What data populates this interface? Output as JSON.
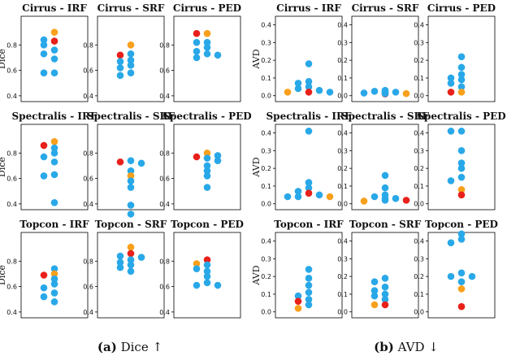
{
  "colors": {
    "blue": "#29a8e8",
    "orange": "#f8a01c",
    "red": "#e8201a",
    "frame": "#000000"
  },
  "captions": [
    {
      "label": "(a)",
      "text": "Dice ↑"
    },
    {
      "label": "(b)",
      "text": "AVD ↓"
    }
  ],
  "chart_data": [
    {
      "type": "scatter",
      "metric": "Dice",
      "title": "Cirrus - IRF",
      "ylabel": "Dice",
      "ylim": [
        0.38,
        1.0
      ],
      "yticks": [
        "0.4",
        "0.6",
        "0.8"
      ],
      "points": [
        {
          "v": 0.9,
          "c": "orange"
        },
        {
          "v": 0.83,
          "c": "red"
        },
        {
          "v": 0.84,
          "c": "blue"
        },
        {
          "v": 0.8,
          "c": "blue"
        },
        {
          "v": 0.76,
          "c": "blue"
        },
        {
          "v": 0.73,
          "c": "blue"
        },
        {
          "v": 0.69,
          "c": "blue"
        },
        {
          "v": 0.58,
          "c": "blue"
        },
        {
          "v": 0.58,
          "c": "blue"
        }
      ]
    },
    {
      "type": "scatter",
      "metric": "Dice",
      "title": "Cirrus - SRF",
      "ylabel": "",
      "ylim": [
        0.38,
        1.0
      ],
      "yticks": [
        "0.4",
        "0.6",
        "0.8"
      ],
      "points": [
        {
          "v": 0.8,
          "c": "orange"
        },
        {
          "v": 0.73,
          "c": "blue"
        },
        {
          "v": 0.72,
          "c": "red"
        },
        {
          "v": 0.68,
          "c": "blue"
        },
        {
          "v": 0.67,
          "c": "blue"
        },
        {
          "v": 0.64,
          "c": "blue"
        },
        {
          "v": 0.62,
          "c": "blue"
        },
        {
          "v": 0.58,
          "c": "blue"
        },
        {
          "v": 0.56,
          "c": "blue"
        }
      ]
    },
    {
      "type": "scatter",
      "metric": "Dice",
      "title": "Cirrus - PED",
      "ylabel": "",
      "ylim": [
        0.38,
        1.0
      ],
      "yticks": [
        "0.4",
        "0.6",
        "0.8"
      ],
      "points": [
        {
          "v": 0.89,
          "c": "orange"
        },
        {
          "v": 0.89,
          "c": "red"
        },
        {
          "v": 0.82,
          "c": "blue"
        },
        {
          "v": 0.82,
          "c": "blue"
        },
        {
          "v": 0.78,
          "c": "blue"
        },
        {
          "v": 0.75,
          "c": "blue"
        },
        {
          "v": 0.73,
          "c": "blue"
        },
        {
          "v": 0.72,
          "c": "blue"
        },
        {
          "v": 0.7,
          "c": "blue"
        }
      ]
    },
    {
      "type": "scatter",
      "metric": "AVD",
      "title": "Cirrus - IRF",
      "ylabel": "AVD",
      "ylim": [
        -0.015,
        0.43
      ],
      "yticks": [
        "0.0",
        "0.1",
        "0.2",
        "0.3",
        "0.4"
      ],
      "points": [
        {
          "v": 0.18,
          "c": "blue"
        },
        {
          "v": 0.08,
          "c": "blue"
        },
        {
          "v": 0.07,
          "c": "blue"
        },
        {
          "v": 0.05,
          "c": "blue"
        },
        {
          "v": 0.04,
          "c": "blue"
        },
        {
          "v": 0.03,
          "c": "blue"
        },
        {
          "v": 0.02,
          "c": "red"
        },
        {
          "v": 0.02,
          "c": "orange"
        },
        {
          "v": 0.02,
          "c": "blue"
        }
      ]
    },
    {
      "type": "scatter",
      "metric": "AVD",
      "title": "Cirrus - SRF",
      "ylabel": "",
      "ylim": [
        -0.015,
        0.43
      ],
      "yticks": [
        "0.0",
        "0.1",
        "0.2",
        "0.3",
        "0.4"
      ],
      "points": [
        {
          "v": 0.03,
          "c": "blue"
        },
        {
          "v": 0.025,
          "c": "blue"
        },
        {
          "v": 0.02,
          "c": "blue"
        },
        {
          "v": 0.015,
          "c": "blue"
        },
        {
          "v": 0.012,
          "c": "orange"
        },
        {
          "v": 0.01,
          "c": "red"
        },
        {
          "v": 0.012,
          "c": "blue"
        },
        {
          "v": 0.018,
          "c": "blue"
        },
        {
          "v": 0.025,
          "c": "blue"
        }
      ]
    },
    {
      "type": "scatter",
      "metric": "AVD",
      "title": "Cirrus - PED",
      "ylabel": "",
      "ylim": [
        -0.015,
        0.43
      ],
      "yticks": [
        "0.0",
        "0.1",
        "0.2",
        "0.3",
        "0.4"
      ],
      "points": [
        {
          "v": 0.22,
          "c": "blue"
        },
        {
          "v": 0.16,
          "c": "blue"
        },
        {
          "v": 0.12,
          "c": "blue"
        },
        {
          "v": 0.1,
          "c": "blue"
        },
        {
          "v": 0.09,
          "c": "blue"
        },
        {
          "v": 0.07,
          "c": "blue"
        },
        {
          "v": 0.05,
          "c": "blue"
        },
        {
          "v": 0.02,
          "c": "orange"
        },
        {
          "v": 0.02,
          "c": "red"
        }
      ]
    },
    {
      "type": "scatter",
      "metric": "Dice",
      "title": "Spectralis - IRF",
      "ylabel": "Dice",
      "ylim": [
        0.38,
        1.0
      ],
      "yticks": [
        "0.4",
        "0.6",
        "0.8"
      ],
      "points": [
        {
          "v": 0.89,
          "c": "orange"
        },
        {
          "v": 0.86,
          "c": "red"
        },
        {
          "v": 0.84,
          "c": "blue"
        },
        {
          "v": 0.8,
          "c": "blue"
        },
        {
          "v": 0.77,
          "c": "blue"
        },
        {
          "v": 0.73,
          "c": "blue"
        },
        {
          "v": 0.63,
          "c": "blue"
        },
        {
          "v": 0.62,
          "c": "blue"
        },
        {
          "v": 0.41,
          "c": "blue"
        }
      ]
    },
    {
      "type": "scatter",
      "metric": "Dice",
      "title": "Spectralis - SRF",
      "ylabel": "",
      "ylim": [
        0.38,
        1.0
      ],
      "yticks": [
        "0.4",
        "0.6",
        "0.8"
      ],
      "points": [
        {
          "v": 0.74,
          "c": "blue"
        },
        {
          "v": 0.73,
          "c": "red"
        },
        {
          "v": 0.72,
          "c": "blue"
        },
        {
          "v": 0.66,
          "c": "blue"
        },
        {
          "v": 0.62,
          "c": "orange"
        },
        {
          "v": 0.58,
          "c": "blue"
        },
        {
          "v": 0.53,
          "c": "blue"
        },
        {
          "v": 0.39,
          "c": "blue"
        },
        {
          "v": 0.32,
          "c": "blue"
        }
      ]
    },
    {
      "type": "scatter",
      "metric": "Dice",
      "title": "Spectralis - PED",
      "ylabel": "",
      "ylim": [
        0.38,
        1.0
      ],
      "yticks": [
        "0.4",
        "0.6",
        "0.8"
      ],
      "points": [
        {
          "v": 0.8,
          "c": "orange"
        },
        {
          "v": 0.77,
          "c": "red"
        },
        {
          "v": 0.78,
          "c": "blue"
        },
        {
          "v": 0.76,
          "c": "blue"
        },
        {
          "v": 0.74,
          "c": "blue"
        },
        {
          "v": 0.7,
          "c": "blue"
        },
        {
          "v": 0.66,
          "c": "blue"
        },
        {
          "v": 0.62,
          "c": "blue"
        },
        {
          "v": 0.53,
          "c": "blue"
        }
      ]
    },
    {
      "type": "scatter",
      "metric": "AVD",
      "title": "Spectralis - IRF",
      "ylabel": "AVD",
      "ylim": [
        -0.015,
        0.43
      ],
      "yticks": [
        "0.0",
        "0.1",
        "0.2",
        "0.3",
        "0.4"
      ],
      "points": [
        {
          "v": 0.41,
          "c": "blue"
        },
        {
          "v": 0.12,
          "c": "blue"
        },
        {
          "v": 0.09,
          "c": "blue"
        },
        {
          "v": 0.07,
          "c": "blue"
        },
        {
          "v": 0.06,
          "c": "red"
        },
        {
          "v": 0.05,
          "c": "blue"
        },
        {
          "v": 0.04,
          "c": "blue"
        },
        {
          "v": 0.04,
          "c": "blue"
        },
        {
          "v": 0.04,
          "c": "orange"
        }
      ]
    },
    {
      "type": "scatter",
      "metric": "AVD",
      "title": "Spectralis - SRF",
      "ylabel": "",
      "ylim": [
        -0.015,
        0.43
      ],
      "yticks": [
        "0.0",
        "0.1",
        "0.2",
        "0.3",
        "0.4"
      ],
      "points": [
        {
          "v": 0.16,
          "c": "blue"
        },
        {
          "v": 0.09,
          "c": "blue"
        },
        {
          "v": 0.05,
          "c": "blue"
        },
        {
          "v": 0.04,
          "c": "blue"
        },
        {
          "v": 0.03,
          "c": "blue"
        },
        {
          "v": 0.02,
          "c": "blue"
        },
        {
          "v": 0.015,
          "c": "orange"
        },
        {
          "v": 0.02,
          "c": "red"
        },
        {
          "v": 0.03,
          "c": "blue"
        }
      ]
    },
    {
      "type": "scatter",
      "metric": "AVD",
      "title": "Spectralis - PED",
      "ylabel": "",
      "ylim": [
        -0.015,
        0.43
      ],
      "yticks": [
        "0.0",
        "0.1",
        "0.2",
        "0.3",
        "0.4"
      ],
      "points": [
        {
          "v": 0.41,
          "c": "blue"
        },
        {
          "v": 0.41,
          "c": "blue"
        },
        {
          "v": 0.3,
          "c": "blue"
        },
        {
          "v": 0.23,
          "c": "blue"
        },
        {
          "v": 0.2,
          "c": "blue"
        },
        {
          "v": 0.15,
          "c": "blue"
        },
        {
          "v": 0.13,
          "c": "blue"
        },
        {
          "v": 0.08,
          "c": "orange"
        },
        {
          "v": 0.05,
          "c": "red"
        }
      ]
    },
    {
      "type": "scatter",
      "metric": "Dice",
      "title": "Topcon - IRF",
      "ylabel": "Dice",
      "ylim": [
        0.38,
        1.0
      ],
      "yticks": [
        "0.4",
        "0.6",
        "0.8"
      ],
      "points": [
        {
          "v": 0.74,
          "c": "blue"
        },
        {
          "v": 0.7,
          "c": "orange"
        },
        {
          "v": 0.69,
          "c": "red"
        },
        {
          "v": 0.66,
          "c": "blue"
        },
        {
          "v": 0.62,
          "c": "blue"
        },
        {
          "v": 0.59,
          "c": "blue"
        },
        {
          "v": 0.55,
          "c": "blue"
        },
        {
          "v": 0.52,
          "c": "blue"
        },
        {
          "v": 0.48,
          "c": "blue"
        }
      ]
    },
    {
      "type": "scatter",
      "metric": "Dice",
      "title": "Topcon - SRF",
      "ylabel": "",
      "ylim": [
        0.38,
        1.0
      ],
      "yticks": [
        "0.4",
        "0.6",
        "0.8"
      ],
      "points": [
        {
          "v": 0.91,
          "c": "orange"
        },
        {
          "v": 0.86,
          "c": "red"
        },
        {
          "v": 0.84,
          "c": "blue"
        },
        {
          "v": 0.83,
          "c": "blue"
        },
        {
          "v": 0.81,
          "c": "blue"
        },
        {
          "v": 0.79,
          "c": "blue"
        },
        {
          "v": 0.77,
          "c": "blue"
        },
        {
          "v": 0.75,
          "c": "blue"
        },
        {
          "v": 0.72,
          "c": "blue"
        }
      ]
    },
    {
      "type": "scatter",
      "metric": "Dice",
      "title": "Topcon - PED",
      "ylabel": "",
      "ylim": [
        0.38,
        1.0
      ],
      "yticks": [
        "0.4",
        "0.6",
        "0.8"
      ],
      "points": [
        {
          "v": 0.81,
          "c": "red"
        },
        {
          "v": 0.78,
          "c": "orange"
        },
        {
          "v": 0.77,
          "c": "blue"
        },
        {
          "v": 0.74,
          "c": "blue"
        },
        {
          "v": 0.72,
          "c": "blue"
        },
        {
          "v": 0.68,
          "c": "blue"
        },
        {
          "v": 0.63,
          "c": "blue"
        },
        {
          "v": 0.61,
          "c": "blue"
        },
        {
          "v": 0.61,
          "c": "blue"
        }
      ]
    },
    {
      "type": "scatter",
      "metric": "AVD",
      "title": "Topcon - IRF",
      "ylabel": "AVD",
      "ylim": [
        -0.015,
        0.43
      ],
      "yticks": [
        "0.0",
        "0.1",
        "0.2",
        "0.3",
        "0.4"
      ],
      "points": [
        {
          "v": 0.24,
          "c": "blue"
        },
        {
          "v": 0.19,
          "c": "blue"
        },
        {
          "v": 0.15,
          "c": "blue"
        },
        {
          "v": 0.11,
          "c": "blue"
        },
        {
          "v": 0.09,
          "c": "blue"
        },
        {
          "v": 0.07,
          "c": "blue"
        },
        {
          "v": 0.06,
          "c": "red"
        },
        {
          "v": 0.04,
          "c": "blue"
        },
        {
          "v": 0.02,
          "c": "orange"
        }
      ]
    },
    {
      "type": "scatter",
      "metric": "AVD",
      "title": "Topcon - SRF",
      "ylabel": "",
      "ylim": [
        -0.015,
        0.43
      ],
      "yticks": [
        "0.0",
        "0.1",
        "0.2",
        "0.3",
        "0.4"
      ],
      "points": [
        {
          "v": 0.19,
          "c": "blue"
        },
        {
          "v": 0.17,
          "c": "blue"
        },
        {
          "v": 0.14,
          "c": "blue"
        },
        {
          "v": 0.12,
          "c": "blue"
        },
        {
          "v": 0.1,
          "c": "blue"
        },
        {
          "v": 0.09,
          "c": "blue"
        },
        {
          "v": 0.07,
          "c": "blue"
        },
        {
          "v": 0.04,
          "c": "red"
        },
        {
          "v": 0.04,
          "c": "orange"
        }
      ]
    },
    {
      "type": "scatter",
      "metric": "AVD",
      "title": "Topcon - PED",
      "ylabel": "",
      "ylim": [
        -0.015,
        0.43
      ],
      "yticks": [
        "0.0",
        "0.1",
        "0.2",
        "0.3",
        "0.4"
      ],
      "points": [
        {
          "v": 0.44,
          "c": "blue"
        },
        {
          "v": 0.41,
          "c": "blue"
        },
        {
          "v": 0.39,
          "c": "blue"
        },
        {
          "v": 0.22,
          "c": "blue"
        },
        {
          "v": 0.2,
          "c": "blue"
        },
        {
          "v": 0.2,
          "c": "blue"
        },
        {
          "v": 0.17,
          "c": "blue"
        },
        {
          "v": 0.13,
          "c": "orange"
        },
        {
          "v": 0.03,
          "c": "red"
        }
      ]
    }
  ]
}
